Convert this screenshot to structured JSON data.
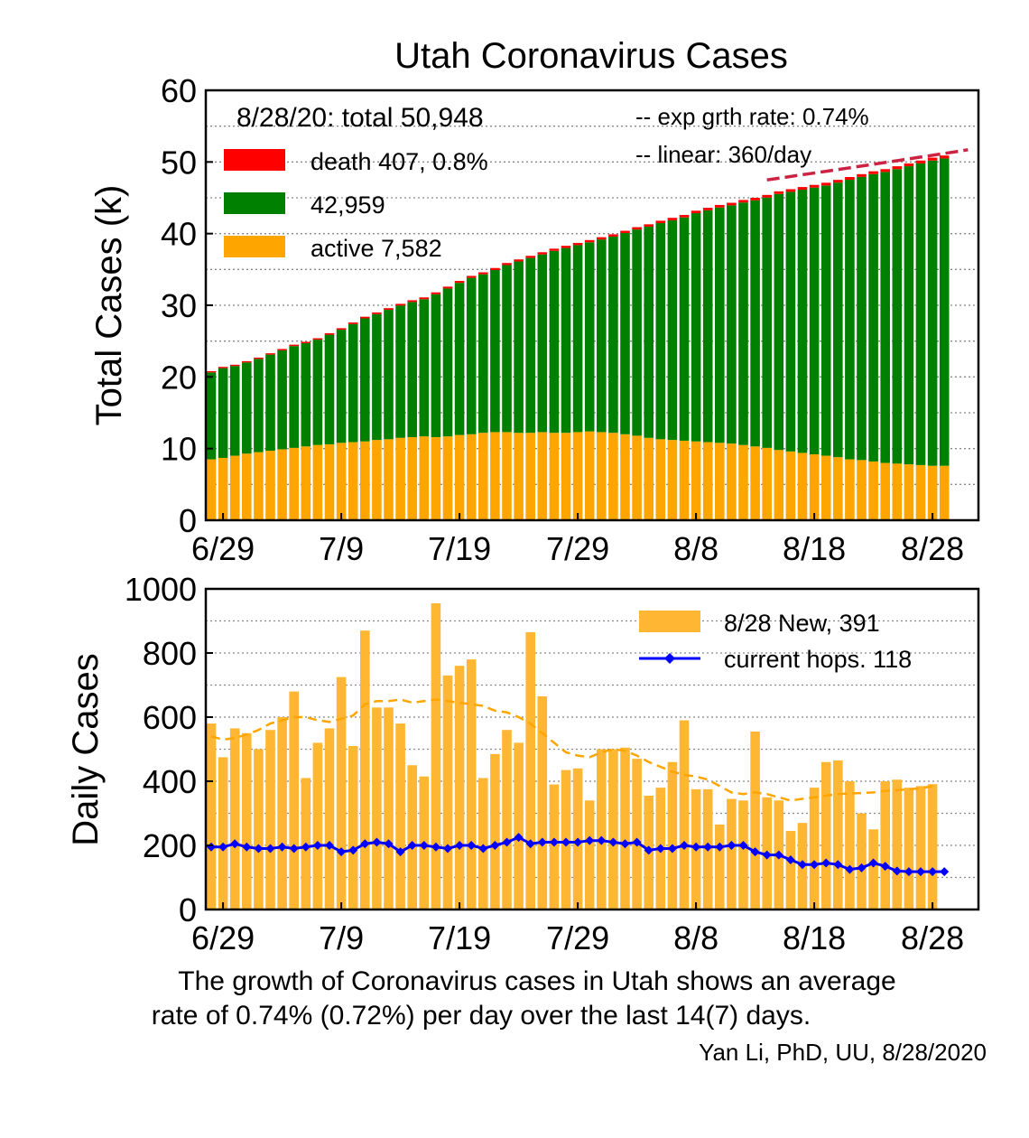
{
  "title": "Utah Coronavirus Cases",
  "caption": {
    "line1": "The growth of Coronavirus cases in Utah shows an average",
    "line2": "rate of 0.74% (0.72%) per day over the last 14(7) days.",
    "credit": "Yan Li, PhD, UU, 8/28/2020"
  },
  "colors": {
    "death": "#ff0000",
    "recovered": "#008000",
    "active": "#ffa500",
    "daily_bar": "#ffb733",
    "daily_avg": "#ffa500",
    "hosp": "#0000ff",
    "exp_fit": "#cc2244",
    "linear_text": "#4682b4",
    "exp_text": "#dc143c"
  },
  "chart_data": [
    {
      "type": "bar",
      "stacked": true,
      "ylabel": "Total Cases (k)",
      "ylim": [
        0,
        60
      ],
      "yticks": [
        "0",
        "10",
        "20",
        "30",
        "40",
        "50",
        "60"
      ],
      "x_tick_labels": [
        "6/29",
        "7/9",
        "7/19",
        "7/29",
        "8/8",
        "8/18",
        "8/28"
      ],
      "x_tick_index": [
        1,
        11,
        21,
        31,
        41,
        51,
        61
      ],
      "grid": true,
      "legend_placement": "top-left",
      "summary": "8/28/20: total 50,948",
      "legend": {
        "death": "death 407, 0.8%",
        "recovered": "42,959",
        "active": "active 7,582"
      },
      "annotations": {
        "exp": "-- exp grth rate: 0.74%",
        "linear": "-- linear: 360/day"
      },
      "total": [
        20.8,
        21.4,
        21.7,
        22.2,
        22.7,
        23.3,
        23.9,
        24.5,
        24.9,
        25.4,
        26.1,
        26.8,
        27.6,
        28.4,
        29.0,
        29.6,
        30.2,
        30.7,
        31.1,
        31.8,
        32.6,
        33.4,
        34.1,
        34.6,
        35.2,
        35.9,
        36.4,
        36.9,
        37.4,
        37.9,
        38.3,
        38.7,
        39.1,
        39.5,
        39.9,
        40.4,
        40.9,
        41.3,
        41.8,
        42.2,
        42.6,
        43.2,
        43.6,
        44.0,
        44.3,
        44.7,
        45.0,
        45.4,
        45.9,
        46.2,
        46.5,
        46.8,
        47.1,
        47.5,
        47.9,
        48.3,
        48.7,
        49.0,
        49.4,
        49.8,
        50.2,
        50.6,
        50.9
      ],
      "active": [
        8.5,
        8.7,
        9.0,
        9.3,
        9.5,
        9.7,
        9.9,
        10.1,
        10.3,
        10.5,
        10.6,
        10.8,
        10.9,
        11.0,
        11.2,
        11.3,
        11.5,
        11.6,
        11.7,
        11.6,
        11.7,
        11.9,
        12.0,
        12.2,
        12.3,
        12.3,
        12.2,
        12.2,
        12.3,
        12.2,
        12.2,
        12.3,
        12.4,
        12.3,
        12.2,
        12.0,
        11.8,
        11.5,
        11.3,
        11.2,
        11.1,
        11.0,
        10.9,
        10.8,
        10.7,
        10.5,
        10.3,
        10.1,
        9.8,
        9.6,
        9.4,
        9.2,
        9.0,
        8.8,
        8.5,
        8.4,
        8.2,
        8.0,
        7.9,
        7.8,
        7.7,
        7.6,
        7.6
      ],
      "death_pct_of_total": 0.8,
      "fit_start_index": 47,
      "fit_end": [
        0,
        47.5,
        64,
        51.7
      ]
    },
    {
      "type": "bar",
      "ylabel": "Daily Cases",
      "ylim": [
        0,
        1000
      ],
      "yticks": [
        "0",
        "200",
        "400",
        "600",
        "800",
        "1000"
      ],
      "x_tick_labels": [
        "6/29",
        "7/9",
        "7/19",
        "7/29",
        "8/8",
        "8/18",
        "8/28"
      ],
      "x_tick_index": [
        1,
        11,
        21,
        31,
        41,
        51,
        61
      ],
      "grid": true,
      "legend_placement": "top-right",
      "series": [
        {
          "name": "8/28 New, 391",
          "type": "bar",
          "values": [
            580,
            475,
            565,
            550,
            500,
            560,
            600,
            680,
            410,
            520,
            565,
            725,
            510,
            870,
            630,
            630,
            580,
            450,
            415,
            955,
            730,
            760,
            780,
            410,
            485,
            560,
            520,
            865,
            665,
            390,
            435,
            440,
            340,
            500,
            500,
            505,
            470,
            355,
            380,
            460,
            590,
            375,
            375,
            265,
            345,
            340,
            555,
            350,
            340,
            245,
            270,
            380,
            460,
            465,
            400,
            300,
            250,
            400,
            405,
            380,
            385,
            391
          ]
        },
        {
          "name": "current hops. 118",
          "type": "line",
          "values": [
            195,
            195,
            205,
            195,
            190,
            190,
            195,
            190,
            195,
            200,
            200,
            180,
            185,
            205,
            210,
            205,
            180,
            200,
            200,
            195,
            190,
            200,
            200,
            190,
            200,
            210,
            225,
            205,
            210,
            210,
            210,
            210,
            215,
            215,
            210,
            205,
            210,
            185,
            190,
            190,
            200,
            195,
            195,
            195,
            200,
            200,
            180,
            170,
            170,
            155,
            140,
            140,
            145,
            140,
            125,
            130,
            145,
            135,
            120,
            118,
            118,
            118,
            118
          ]
        }
      ],
      "moving_average": [
        540,
        530,
        535,
        545,
        560,
        580,
        590,
        600,
        600,
        590,
        585,
        595,
        605,
        640,
        650,
        650,
        655,
        645,
        650,
        655,
        650,
        645,
        640,
        635,
        620,
        615,
        600,
        580,
        550,
        520,
        490,
        480,
        475,
        490,
        500,
        495,
        480,
        460,
        445,
        430,
        420,
        415,
        405,
        385,
        365,
        360,
        365,
        360,
        350,
        340,
        345,
        350,
        355,
        360,
        362,
        363,
        365,
        370,
        372,
        375,
        378,
        385
      ]
    }
  ]
}
